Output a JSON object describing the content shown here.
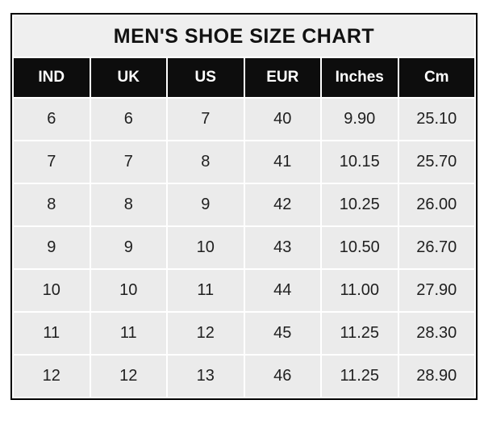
{
  "table": {
    "title": "MEN'S SHOE SIZE CHART",
    "columns": [
      "IND",
      "UK",
      "US",
      "EUR",
      "Inches",
      "Cm"
    ],
    "rows": [
      [
        "6",
        "6",
        "7",
        "40",
        "9.90",
        "25.10"
      ],
      [
        "7",
        "7",
        "8",
        "41",
        "10.15",
        "25.70"
      ],
      [
        "8",
        "8",
        "9",
        "42",
        "10.25",
        "26.00"
      ],
      [
        "9",
        "9",
        "10",
        "43",
        "10.50",
        "26.70"
      ],
      [
        "10",
        "10",
        "11",
        "44",
        "11.00",
        "27.90"
      ],
      [
        "11",
        "11",
        "12",
        "45",
        "11.25",
        "28.30"
      ],
      [
        "12",
        "12",
        "13",
        "46",
        "11.25",
        "28.90"
      ]
    ],
    "colors": {
      "outer_border": "#000000",
      "title_bg": "#efefef",
      "header_bg": "#0d0d0d",
      "header_text": "#ffffff",
      "cell_bg": "#ebebeb",
      "cell_text": "#1f1f1f",
      "gap": "#ffffff"
    }
  },
  "chart_data": {
    "type": "table",
    "title": "MEN'S SHOE SIZE CHART",
    "columns": [
      "IND",
      "UK",
      "US",
      "EUR",
      "Inches",
      "Cm"
    ],
    "rows": [
      [
        6,
        6,
        7,
        40,
        9.9,
        25.1
      ],
      [
        7,
        7,
        8,
        41,
        10.15,
        25.7
      ],
      [
        8,
        8,
        9,
        42,
        10.25,
        26.0
      ],
      [
        9,
        9,
        10,
        43,
        10.5,
        26.7
      ],
      [
        10,
        10,
        11,
        44,
        11.0,
        27.9
      ],
      [
        11,
        11,
        12,
        45,
        11.25,
        28.3
      ],
      [
        12,
        12,
        13,
        46,
        11.25,
        28.9
      ]
    ],
    "layout_hints": {
      "header_style": "black background, white bold text",
      "title_position": "top spanning all columns",
      "grid": "thin white separators between light gray cells"
    }
  }
}
